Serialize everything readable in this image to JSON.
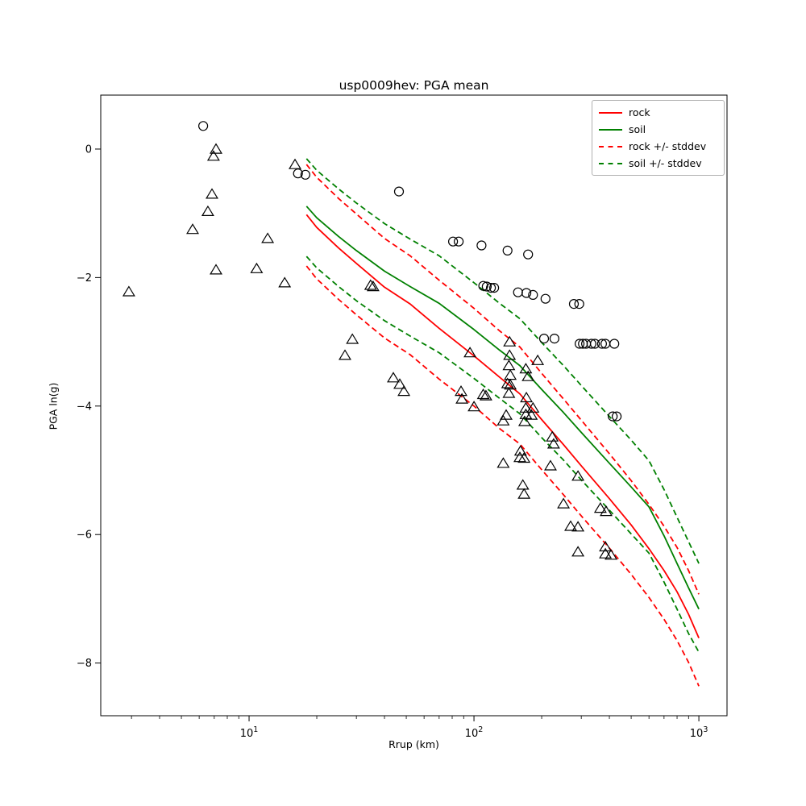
{
  "chart_data": {
    "type": "line+scatter",
    "title": "usp0009hev: PGA mean",
    "xlabel": "Rrup (km)",
    "ylabel": "PGA ln(g)",
    "x_scale": "log",
    "x_range": [
      2.19,
      1334
    ],
    "y_range": [
      -8.82,
      0.84
    ],
    "grid": false,
    "legend_position": "upper right",
    "x_ticks": [
      {
        "v": 10,
        "base": "10",
        "exp": "1"
      },
      {
        "v": 100,
        "base": "10",
        "exp": "2"
      },
      {
        "v": 1000,
        "base": "10",
        "exp": "3"
      }
    ],
    "y_ticks": [
      {
        "v": 0,
        "label": "0"
      },
      {
        "v": -2,
        "label": "−2"
      },
      {
        "v": -4,
        "label": "−4"
      },
      {
        "v": -6,
        "label": "−6"
      },
      {
        "v": -8,
        "label": "−8"
      }
    ],
    "legend": [
      {
        "label": "rock",
        "color": "#ff0000",
        "dash": false
      },
      {
        "label": "soil",
        "color": "#008000",
        "dash": false
      },
      {
        "label": "rock +/- stddev",
        "color": "#ff0000",
        "dash": true
      },
      {
        "label": "soil +/- stddev",
        "color": "#008000",
        "dash": true
      }
    ],
    "series": [
      {
        "name": "soil + stddev",
        "color": "#008000",
        "dash": true,
        "points": [
          [
            18,
            -0.15
          ],
          [
            20,
            -0.33
          ],
          [
            25,
            -0.62
          ],
          [
            30,
            -0.84
          ],
          [
            40,
            -1.16
          ],
          [
            52,
            -1.4
          ],
          [
            70,
            -1.66
          ],
          [
            100,
            -2.08
          ],
          [
            130,
            -2.4
          ],
          [
            160,
            -2.64
          ],
          [
            200,
            -3.01
          ],
          [
            250,
            -3.37
          ],
          [
            300,
            -3.68
          ],
          [
            400,
            -4.16
          ],
          [
            500,
            -4.53
          ],
          [
            600,
            -4.85
          ],
          [
            700,
            -5.3
          ],
          [
            800,
            -5.73
          ],
          [
            900,
            -6.11
          ],
          [
            1000,
            -6.45
          ]
        ]
      },
      {
        "name": "rock + stddev",
        "color": "#ff0000",
        "dash": true,
        "points": [
          [
            18,
            -0.24
          ],
          [
            20,
            -0.44
          ],
          [
            25,
            -0.77
          ],
          [
            30,
            -1.01
          ],
          [
            40,
            -1.39
          ],
          [
            52,
            -1.66
          ],
          [
            70,
            -2.04
          ],
          [
            100,
            -2.48
          ],
          [
            130,
            -2.83
          ],
          [
            160,
            -3.08
          ],
          [
            200,
            -3.49
          ],
          [
            250,
            -3.89
          ],
          [
            300,
            -4.22
          ],
          [
            400,
            -4.74
          ],
          [
            500,
            -5.16
          ],
          [
            600,
            -5.53
          ],
          [
            700,
            -5.87
          ],
          [
            800,
            -6.2
          ],
          [
            900,
            -6.56
          ],
          [
            1000,
            -6.93
          ]
        ]
      },
      {
        "name": "soil",
        "color": "#008000",
        "dash": false,
        "points": [
          [
            18,
            -0.89
          ],
          [
            20,
            -1.07
          ],
          [
            25,
            -1.36
          ],
          [
            30,
            -1.58
          ],
          [
            40,
            -1.9
          ],
          [
            52,
            -2.14
          ],
          [
            70,
            -2.4
          ],
          [
            100,
            -2.81
          ],
          [
            130,
            -3.13
          ],
          [
            160,
            -3.37
          ],
          [
            200,
            -3.74
          ],
          [
            250,
            -4.1
          ],
          [
            300,
            -4.41
          ],
          [
            400,
            -4.89
          ],
          [
            500,
            -5.26
          ],
          [
            600,
            -5.57
          ],
          [
            700,
            -6.02
          ],
          [
            800,
            -6.45
          ],
          [
            900,
            -6.83
          ],
          [
            1000,
            -7.16
          ]
        ]
      },
      {
        "name": "rock",
        "color": "#ff0000",
        "dash": false,
        "points": [
          [
            18,
            -1.02
          ],
          [
            20,
            -1.22
          ],
          [
            25,
            -1.54
          ],
          [
            30,
            -1.78
          ],
          [
            40,
            -2.15
          ],
          [
            52,
            -2.41
          ],
          [
            70,
            -2.79
          ],
          [
            100,
            -3.22
          ],
          [
            130,
            -3.55
          ],
          [
            160,
            -3.81
          ],
          [
            200,
            -4.21
          ],
          [
            250,
            -4.6
          ],
          [
            300,
            -4.93
          ],
          [
            400,
            -5.44
          ],
          [
            500,
            -5.85
          ],
          [
            600,
            -6.22
          ],
          [
            700,
            -6.56
          ],
          [
            800,
            -6.89
          ],
          [
            900,
            -7.24
          ],
          [
            1000,
            -7.61
          ]
        ]
      },
      {
        "name": "soil - stddev",
        "color": "#008000",
        "dash": true,
        "points": [
          [
            18,
            -1.67
          ],
          [
            20,
            -1.85
          ],
          [
            25,
            -2.14
          ],
          [
            30,
            -2.36
          ],
          [
            40,
            -2.67
          ],
          [
            52,
            -2.91
          ],
          [
            70,
            -3.17
          ],
          [
            100,
            -3.57
          ],
          [
            130,
            -3.88
          ],
          [
            160,
            -4.12
          ],
          [
            200,
            -4.49
          ],
          [
            250,
            -4.84
          ],
          [
            300,
            -5.15
          ],
          [
            400,
            -5.62
          ],
          [
            500,
            -5.99
          ],
          [
            600,
            -6.29
          ],
          [
            700,
            -6.74
          ],
          [
            800,
            -7.16
          ],
          [
            900,
            -7.54
          ],
          [
            1000,
            -7.83
          ]
        ]
      },
      {
        "name": "rock - stddev",
        "color": "#ff0000",
        "dash": true,
        "points": [
          [
            18,
            -1.82
          ],
          [
            20,
            -2.02
          ],
          [
            25,
            -2.34
          ],
          [
            30,
            -2.58
          ],
          [
            40,
            -2.94
          ],
          [
            52,
            -3.2
          ],
          [
            70,
            -3.58
          ],
          [
            100,
            -4.0
          ],
          [
            130,
            -4.35
          ],
          [
            160,
            -4.59
          ],
          [
            200,
            -4.99
          ],
          [
            250,
            -5.38
          ],
          [
            300,
            -5.71
          ],
          [
            400,
            -6.21
          ],
          [
            500,
            -6.62
          ],
          [
            600,
            -6.98
          ],
          [
            700,
            -7.32
          ],
          [
            800,
            -7.65
          ],
          [
            900,
            -7.99
          ],
          [
            1000,
            -8.36
          ]
        ]
      }
    ],
    "scatter": {
      "marker_color": "#000000",
      "circles": [
        [
          6.25,
          0.36
        ],
        [
          16.5,
          -0.38
        ],
        [
          17.8,
          -0.4
        ],
        [
          46.4,
          -0.66
        ],
        [
          80.7,
          -1.44
        ],
        [
          85.5,
          -1.44
        ],
        [
          108,
          -1.5
        ],
        [
          141,
          -1.58
        ],
        [
          174,
          -1.64
        ],
        [
          110,
          -2.13
        ],
        [
          114,
          -2.14
        ],
        [
          119,
          -2.16
        ],
        [
          123,
          -2.16
        ],
        [
          157,
          -2.23
        ],
        [
          171,
          -2.24
        ],
        [
          183,
          -2.27
        ],
        [
          208,
          -2.33
        ],
        [
          278,
          -2.41
        ],
        [
          294,
          -2.41
        ],
        [
          205,
          -2.95
        ],
        [
          228,
          -2.95
        ],
        [
          295,
          -3.03
        ],
        [
          305,
          -3.03
        ],
        [
          315,
          -3.03
        ],
        [
          333,
          -3.03
        ],
        [
          345,
          -3.03
        ],
        [
          371,
          -3.03
        ],
        [
          384,
          -3.03
        ],
        [
          421,
          -3.03
        ],
        [
          414,
          -4.16
        ],
        [
          431,
          -4.16
        ]
      ],
      "triangles": [
        [
          2.92,
          -2.22
        ],
        [
          7.13,
          0.0
        ],
        [
          6.95,
          -0.11
        ],
        [
          16.0,
          -0.24
        ],
        [
          6.84,
          -0.7
        ],
        [
          6.56,
          -0.97
        ],
        [
          5.61,
          -1.25
        ],
        [
          12.1,
          -1.39
        ],
        [
          10.8,
          -1.86
        ],
        [
          7.13,
          -1.88
        ],
        [
          14.4,
          -2.08
        ],
        [
          34.7,
          -2.12
        ],
        [
          35.6,
          -2.14
        ],
        [
          28.8,
          -2.96
        ],
        [
          26.7,
          -3.21
        ],
        [
          43.8,
          -3.56
        ],
        [
          46.8,
          -3.66
        ],
        [
          48.8,
          -3.77
        ],
        [
          96.0,
          -3.17
        ],
        [
          144,
          -3.0
        ],
        [
          144,
          -3.21
        ],
        [
          143,
          -3.37
        ],
        [
          145,
          -3.52
        ],
        [
          141,
          -3.65
        ],
        [
          145,
          -3.67
        ],
        [
          143,
          -3.8
        ],
        [
          87.6,
          -3.77
        ],
        [
          88.4,
          -3.89
        ],
        [
          110,
          -3.82
        ],
        [
          113,
          -3.84
        ],
        [
          100,
          -4.01
        ],
        [
          139,
          -4.14
        ],
        [
          135,
          -4.23
        ],
        [
          192,
          -3.29
        ],
        [
          170,
          -3.42
        ],
        [
          174,
          -3.54
        ],
        [
          171,
          -3.87
        ],
        [
          170,
          -4.03
        ],
        [
          183,
          -4.03
        ],
        [
          170,
          -4.13
        ],
        [
          180,
          -4.14
        ],
        [
          168,
          -4.24
        ],
        [
          135,
          -4.89
        ],
        [
          161,
          -4.7
        ],
        [
          160,
          -4.8
        ],
        [
          167,
          -4.81
        ],
        [
          223,
          -4.48
        ],
        [
          226,
          -4.59
        ],
        [
          219,
          -4.93
        ],
        [
          290,
          -5.09
        ],
        [
          165,
          -5.23
        ],
        [
          167,
          -5.37
        ],
        [
          250,
          -5.52
        ],
        [
          365,
          -5.59
        ],
        [
          387,
          -5.64
        ],
        [
          269,
          -5.87
        ],
        [
          290,
          -5.88
        ],
        [
          290,
          -6.27
        ],
        [
          384,
          -6.19
        ],
        [
          384,
          -6.3
        ],
        [
          407,
          -6.32
        ]
      ]
    }
  }
}
